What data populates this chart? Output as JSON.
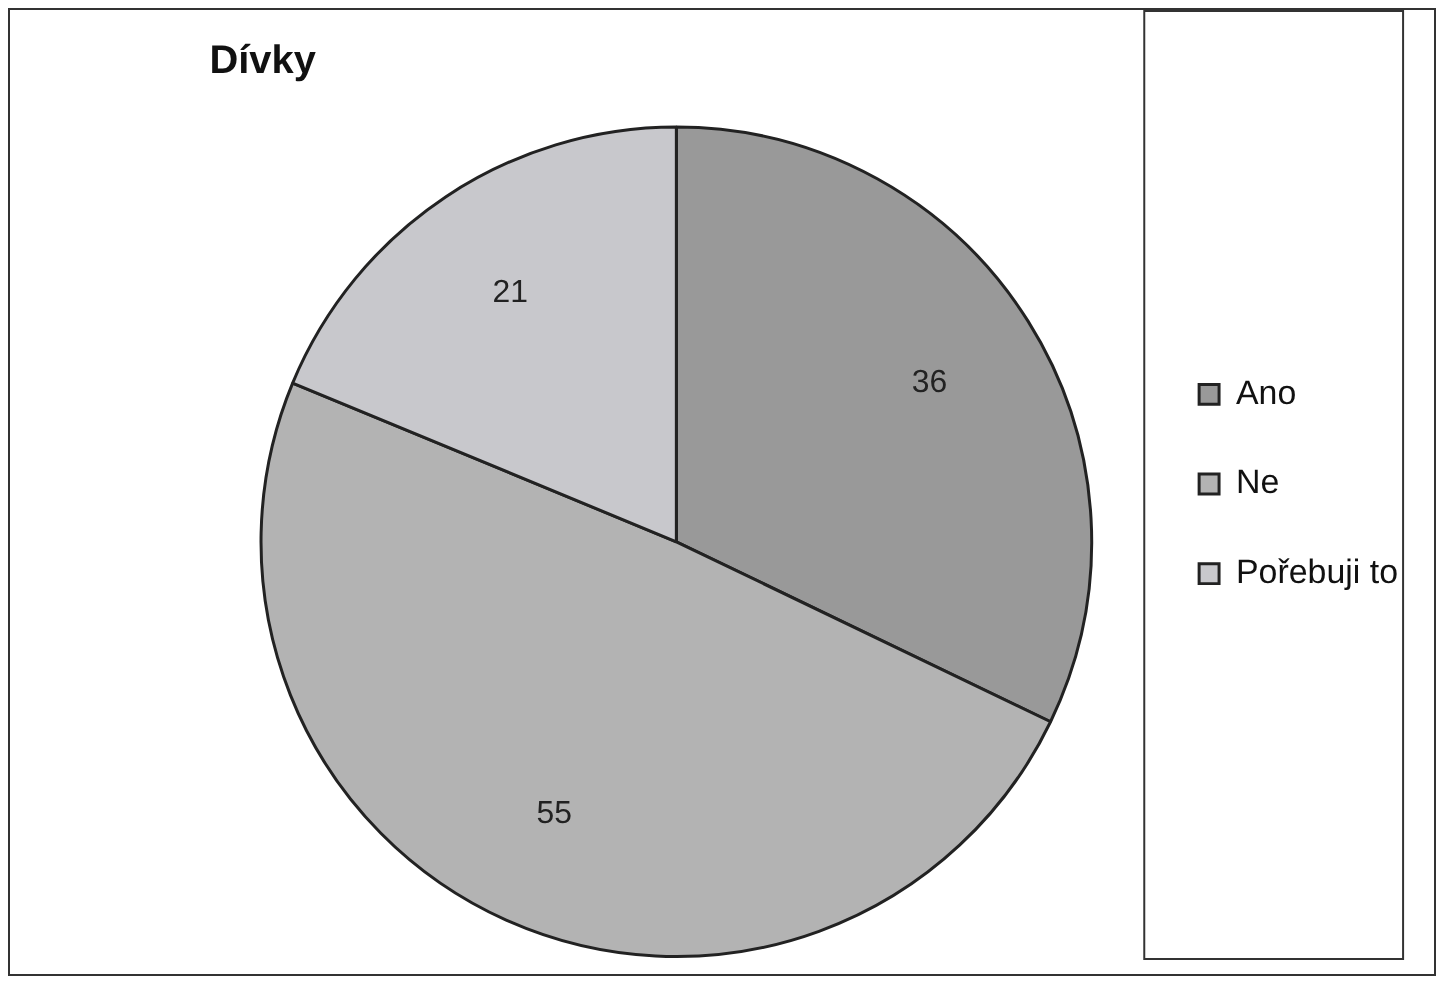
{
  "chart_data": {
    "type": "pie",
    "title": "Dívky",
    "categories": [
      "Ano",
      "Ne",
      "Pořebuji to"
    ],
    "values": [
      36,
      55,
      21
    ],
    "colors": [
      "#999999",
      "#b3b3b3",
      "#c8c8cc"
    ],
    "data_labels": true,
    "legend": "right"
  }
}
